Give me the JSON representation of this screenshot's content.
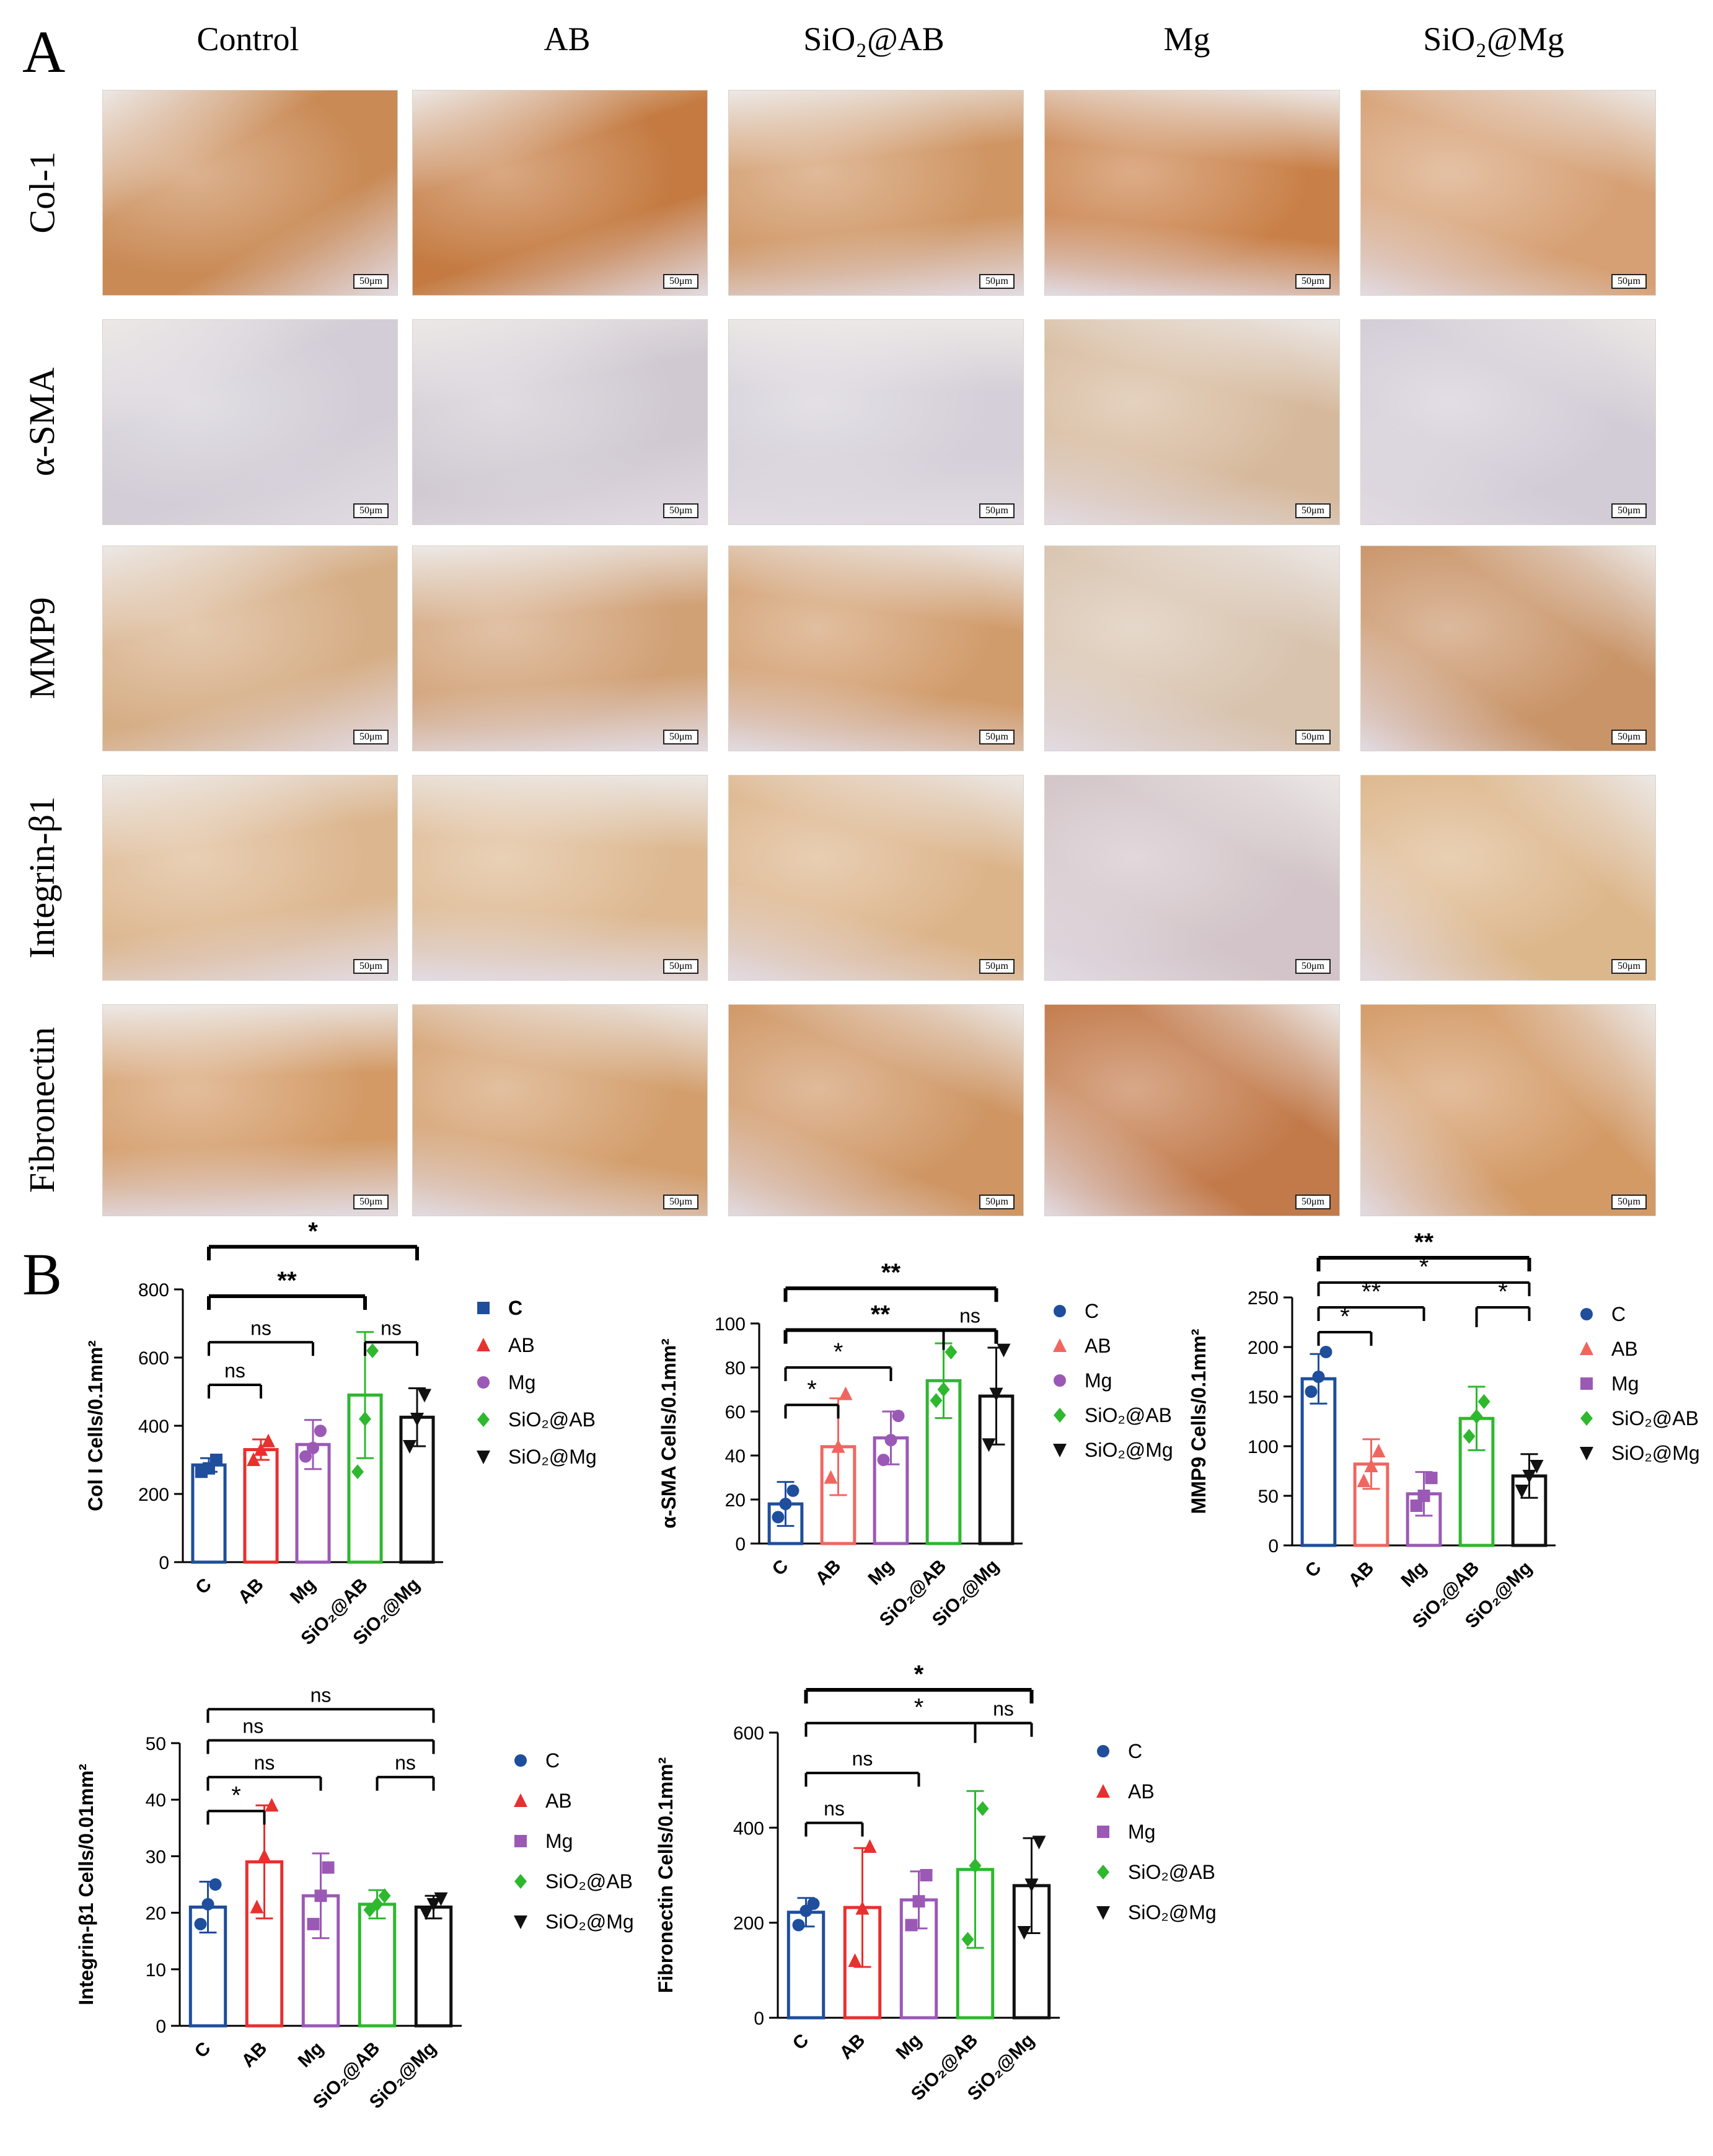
{
  "panel_a": {
    "letter": "A",
    "columns": [
      "Control",
      "AB",
      "SiO₂@AB",
      "Mg",
      "SiO₂@Mg"
    ],
    "rows": [
      "Col-1",
      "α-SMA",
      "MMP9",
      "Integrin-β1",
      "Fibronectin"
    ],
    "scale_label": "50μm",
    "tissue_tone": {
      "Col-1": [
        "#c98a55",
        "#c47a40",
        "#cf9563",
        "#c98048",
        "#d6a074"
      ],
      "α-SMA": [
        "#d2cdd6",
        "#d0c9d2",
        "#d4cfd8",
        "#d6b99c",
        "#d2ccd6"
      ],
      "MMP9": [
        "#d6ae86",
        "#d1a176",
        "#d19c6c",
        "#d8c3ae",
        "#c99468"
      ],
      "Integrin-β1": [
        "#dcb68e",
        "#ddb890",
        "#dcb48a",
        "#d2c4c8",
        "#ddb78c"
      ],
      "Fibronectin": [
        "#d39a66",
        "#d39e6c",
        "#cf9664",
        "#c27a4a",
        "#d39a66"
      ]
    }
  },
  "panel_b": {
    "letter": "B"
  },
  "chart_data": [
    {
      "type": "bar",
      "ylabel": "Col I  Cells/0.1mm²",
      "categories": [
        "C",
        "AB",
        "Mg",
        "SiO₂@AB",
        "SiO₂@Mg"
      ],
      "values": [
        285,
        330,
        345,
        490,
        425
      ],
      "error": [
        20,
        30,
        72,
        185,
        85
      ],
      "points": [
        [
          265,
          275,
          300
        ],
        [
          300,
          330,
          355
        ],
        [
          310,
          335,
          385
        ],
        [
          265,
          420,
          620
        ],
        [
          340,
          420,
          490
        ]
      ],
      "ylim": [
        0,
        800
      ],
      "yticks": [
        0,
        200,
        400,
        600,
        800
      ],
      "colors": [
        "#1f4e9c",
        "#e8302f",
        "#9b59b6",
        "#2eb82e",
        "#111111"
      ],
      "markers": [
        "square",
        "triangle",
        "circle",
        "diamond",
        "tri-down"
      ],
      "legend": [
        "C",
        "AB",
        "Mg",
        "SiO₂@AB",
        "SiO₂@Mg"
      ],
      "legend_bold_first": true,
      "significance": [
        {
          "from": 0,
          "to": 4,
          "label": "*",
          "y": 925,
          "style": "bold"
        },
        {
          "from": 0,
          "to": 3,
          "label": "**",
          "y": 780,
          "style": "bold"
        },
        {
          "from": 0,
          "to": 2,
          "label": "ns",
          "y": 645
        },
        {
          "from": 0,
          "to": 1,
          "label": "ns",
          "y": 520
        },
        {
          "from": 3,
          "to": 4,
          "label": "ns",
          "y": 645
        }
      ]
    },
    {
      "type": "bar",
      "ylabel": "α-SMA Cells/0.1mm²",
      "categories": [
        "C",
        "AB",
        "Mg",
        "SiO₂@AB",
        "SiO₂@Mg"
      ],
      "values": [
        18,
        44,
        48,
        74,
        67
      ],
      "error": [
        10,
        22,
        12,
        17,
        22
      ],
      "points": [
        [
          12,
          18,
          24
        ],
        [
          30,
          44,
          68
        ],
        [
          38,
          47,
          58
        ],
        [
          65,
          70,
          87
        ],
        [
          45,
          68,
          88
        ]
      ],
      "ylim": [
        0,
        100
      ],
      "yticks": [
        0,
        20,
        40,
        60,
        80,
        100
      ],
      "colors": [
        "#1f4e9c",
        "#f0665f",
        "#9b59b6",
        "#2eb82e",
        "#111111"
      ],
      "markers": [
        "circle",
        "triangle",
        "circle",
        "diamond",
        "tri-down"
      ],
      "legend": [
        "C",
        "AB",
        "Mg",
        "SiO₂@AB",
        "SiO₂@Mg"
      ],
      "significance": [
        {
          "from": 0,
          "to": 4,
          "label": "**",
          "y": 116,
          "style": "bold"
        },
        {
          "from": 0,
          "to": 4,
          "label": "**",
          "y": 97,
          "style": "bold",
          "labelPos": 0.45
        },
        {
          "from": 3,
          "to": 4,
          "label": "ns",
          "y": 97,
          "skipLeft": true
        },
        {
          "from": 0,
          "to": 2,
          "label": "*",
          "y": 80
        },
        {
          "from": 0,
          "to": 1,
          "label": "*",
          "y": 63
        }
      ]
    },
    {
      "type": "bar",
      "ylabel": "MMP9 Cells/0.1mm²",
      "categories": [
        "C",
        "AB",
        "Mg",
        "SiO₂@AB",
        "SiO₂@Mg"
      ],
      "values": [
        168,
        82,
        52,
        128,
        70
      ],
      "error": [
        25,
        25,
        22,
        32,
        22
      ],
      "points": [
        [
          155,
          170,
          195
        ],
        [
          65,
          80,
          95
        ],
        [
          40,
          50,
          68
        ],
        [
          110,
          130,
          145
        ],
        [
          55,
          70,
          80
        ]
      ],
      "ylim": [
        0,
        250
      ],
      "yticks": [
        0,
        50,
        100,
        150,
        200,
        250
      ],
      "colors": [
        "#1f4e9c",
        "#f0665f",
        "#9b59b6",
        "#2eb82e",
        "#111111"
      ],
      "markers": [
        "circle",
        "triangle",
        "square",
        "diamond",
        "tri-down"
      ],
      "legend": [
        "C",
        "AB",
        "Mg",
        "SiO₂@AB",
        "SiO₂@Mg"
      ],
      "significance": [
        {
          "from": 0,
          "to": 4,
          "label": "**",
          "y": 290,
          "style": "bold"
        },
        {
          "from": 0,
          "to": 4,
          "label": "*",
          "y": 265,
          "labelPos": 0.5
        },
        {
          "from": 0,
          "to": 2,
          "label": "**",
          "y": 240
        },
        {
          "from": 0,
          "to": 1,
          "label": "*",
          "y": 215
        },
        {
          "from": 3,
          "to": 4,
          "label": "*",
          "y": 240,
          "skipLeft": true
        }
      ]
    },
    {
      "type": "bar",
      "ylabel": "Integrin-β1 Cells/0.01mm²",
      "categories": [
        "C",
        "AB",
        "Mg",
        "SiO₂@AB",
        "SiO₂@Mg"
      ],
      "values": [
        21,
        29,
        23,
        21.5,
        21
      ],
      "error": [
        4.5,
        10,
        7.5,
        2.5,
        2
      ],
      "points": [
        [
          18,
          21.5,
          25
        ],
        [
          21,
          30,
          39
        ],
        [
          18,
          23,
          28
        ],
        [
          20.5,
          21.5,
          23
        ],
        [
          20,
          21.5,
          22.5
        ]
      ],
      "ylim": [
        0,
        50
      ],
      "yticks": [
        0,
        10,
        20,
        30,
        40,
        50
      ],
      "colors": [
        "#1f4e9c",
        "#e8302f",
        "#9b59b6",
        "#2eb82e",
        "#111111"
      ],
      "markers": [
        "circle",
        "triangle",
        "square",
        "diamond",
        "tri-down"
      ],
      "legend": [
        "C",
        "AB",
        "Mg",
        "SiO₂@AB",
        "SiO₂@Mg"
      ],
      "significance": [
        {
          "from": 0,
          "to": 4,
          "label": "ns",
          "y": 56
        },
        {
          "from": 0,
          "to": 4,
          "label": "ns",
          "y": 50.5,
          "labelPos": 0.2
        },
        {
          "from": 0,
          "to": 2,
          "label": "ns",
          "y": 44
        },
        {
          "from": 0,
          "to": 1,
          "label": "*",
          "y": 38
        },
        {
          "from": 3,
          "to": 4,
          "label": "ns",
          "y": 44
        }
      ]
    },
    {
      "type": "bar",
      "ylabel": "Fibronectin Cells/0.1mm²",
      "categories": [
        "C",
        "AB",
        "Mg",
        "SiO₂@AB",
        "SiO₂@Mg"
      ],
      "values": [
        222,
        232,
        248,
        312,
        278
      ],
      "error": [
        30,
        125,
        60,
        165,
        100
      ],
      "points": [
        [
          195,
          225,
          240
        ],
        [
          120,
          230,
          360
        ],
        [
          195,
          245,
          300
        ],
        [
          165,
          320,
          440
        ],
        [
          180,
          280,
          370
        ]
      ],
      "ylim": [
        0,
        600
      ],
      "yticks": [
        0,
        200,
        400,
        600
      ],
      "colors": [
        "#1f4e9c",
        "#e8302f",
        "#9b59b6",
        "#2eb82e",
        "#111111"
      ],
      "markers": [
        "circle",
        "triangle",
        "square",
        "diamond",
        "tri-down"
      ],
      "legend": [
        "C",
        "AB",
        "Mg",
        "SiO₂@AB",
        "SiO₂@Mg"
      ],
      "significance": [
        {
          "from": 0,
          "to": 4,
          "label": "*",
          "y": 690,
          "style": "bold"
        },
        {
          "from": 0,
          "to": 4,
          "label": "*",
          "y": 620,
          "labelPos": 0.5
        },
        {
          "from": 3,
          "to": 4,
          "label": "ns",
          "y": 620,
          "skipLeft": true
        },
        {
          "from": 0,
          "to": 2,
          "label": "ns",
          "y": 515
        },
        {
          "from": 0,
          "to": 1,
          "label": "ns",
          "y": 410
        }
      ]
    }
  ]
}
